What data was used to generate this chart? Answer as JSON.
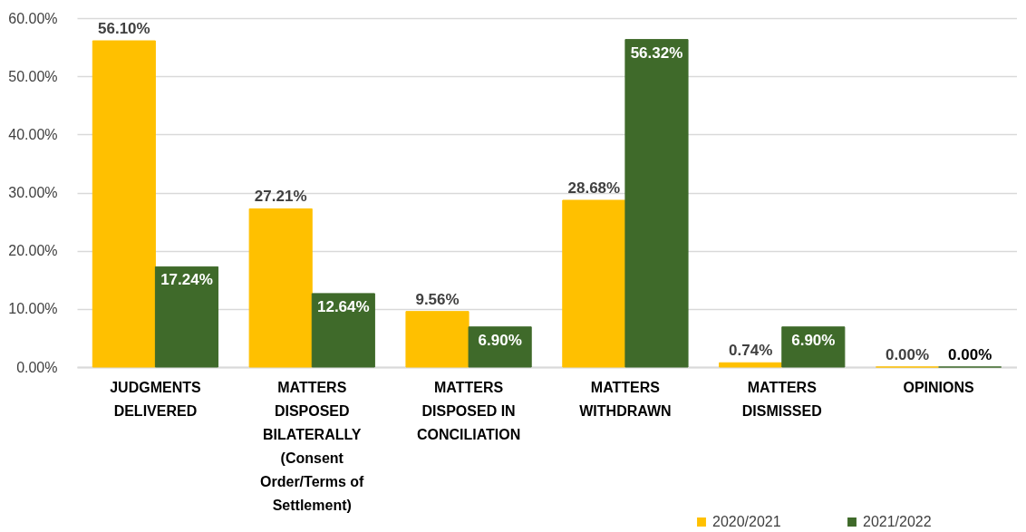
{
  "chart_data": {
    "type": "bar",
    "categories": [
      "JUDGMENTS DELIVERED",
      "MATTERS DISPOSED BILATERALLY (Consent Order/Terms of Settlement)",
      "MATTERS DISPOSED IN CONCILIATION",
      "MATTERS WITHDRAWN",
      "MATTERS DISMISSED",
      "OPINIONS"
    ],
    "series": [
      {
        "name": "2020/2021",
        "color": "#ffc000",
        "values": [
          56.1,
          27.21,
          9.56,
          28.68,
          0.74,
          0.0
        ],
        "value_labels": [
          "56.10%",
          "27.21%",
          "9.56%",
          "28.68%",
          "0.74%",
          "0.00%"
        ]
      },
      {
        "name": "2021/2022",
        "color": "#3f6a2a",
        "values": [
          17.24,
          12.64,
          6.9,
          56.32,
          6.9,
          0.0
        ],
        "value_labels": [
          "17.24%",
          "12.64%",
          "6.90%",
          "56.32%",
          "6.90%",
          "0.00%"
        ]
      }
    ],
    "ylim": [
      0,
      60
    ],
    "yticks": [
      {
        "value": 0,
        "label": "0.00%"
      },
      {
        "value": 10,
        "label": "10.00%"
      },
      {
        "value": 20,
        "label": "20.00%"
      },
      {
        "value": 30,
        "label": "30.00%"
      },
      {
        "value": 40,
        "label": "40.00%"
      },
      {
        "value": 50,
        "label": "50.00%"
      },
      {
        "value": 60,
        "label": "60.00%"
      }
    ],
    "grid": "y",
    "legend": "bottom right"
  }
}
